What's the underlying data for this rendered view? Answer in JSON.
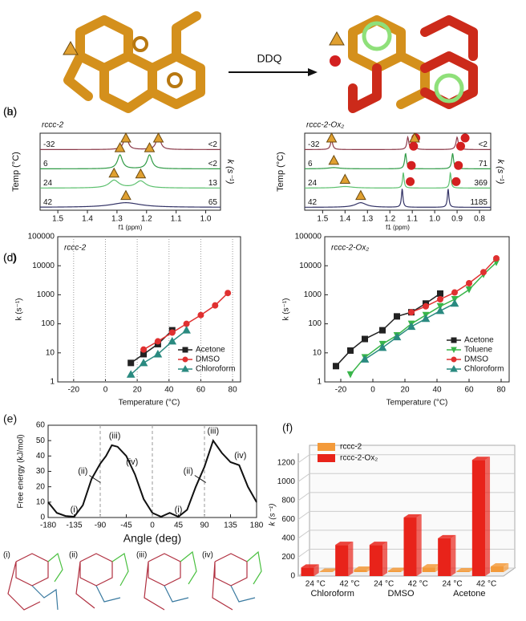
{
  "header": {
    "reagent": "DDQ"
  },
  "structures": {
    "labels": [
      "(i)",
      "(ii)",
      "(iii)",
      "(iv)"
    ]
  },
  "chart_data": [
    {
      "type": "spectrum",
      "panel": "(a)",
      "title": "rccc-2",
      "xlabel": "f1 (ppm)",
      "ylabel": "Temp (°C)",
      "y2label": "k (s⁻¹)",
      "xlim": [
        1.56,
        0.95
      ],
      "xticks": [
        1.5,
        1.4,
        1.3,
        1.2,
        1.1,
        {
          "value": 1.0,
          "label": "1.0"
        }
      ],
      "series": [
        {
          "temp": -32,
          "rate": "<2",
          "color": "#8b3a4a",
          "peaks": [
            1.27,
            1.16
          ],
          "heights": [
            1,
            1
          ],
          "widths": [
            0.008,
            0.008
          ],
          "markers": [
            "triangle",
            "triangle"
          ]
        },
        {
          "temp": 6,
          "rate": "<2",
          "color": "#2f9a45",
          "peaks": [
            1.29,
            1.19
          ],
          "heights": [
            0.9,
            0.9
          ],
          "widths": [
            0.01,
            0.01
          ],
          "markers": [
            "triangle",
            "triangle"
          ]
        },
        {
          "temp": 24,
          "rate": 13,
          "color": "#5cc06e",
          "peaks": [
            1.31,
            1.22
          ],
          "heights": [
            0.5,
            0.45
          ],
          "widths": [
            0.02,
            0.02
          ],
          "markers": [
            "triangle",
            "triangle"
          ]
        },
        {
          "temp": 42,
          "rate": 65,
          "color": "#333366",
          "peaks": [
            1.27
          ],
          "heights": [
            0.3
          ],
          "widths": [
            0.06
          ],
          "markers": [
            "triangle"
          ]
        }
      ]
    },
    {
      "type": "spectrum",
      "panel": "(b)",
      "title": "rccc-2-Ox₂",
      "xlabel": "f1 (ppm)",
      "ylabel": "Temp (°C)",
      "y2label": "k (s⁻¹)",
      "xlim": [
        1.58,
        0.75
      ],
      "xticks": [
        1.5,
        1.4,
        1.3,
        1.2,
        1.1,
        {
          "value": 1.0,
          "label": "1.0"
        },
        0.9,
        0.8
      ],
      "series": [
        {
          "temp": -32,
          "rate": "<2",
          "color": "#8b3a4a",
          "peaks": [
            1.46,
            1.12,
            1.09,
            0.9
          ],
          "heights": [
            0.6,
            0.8,
            0.5,
            0.8
          ],
          "widths": [
            0.006,
            0.005,
            0.005,
            0.006
          ],
          "markers": [
            "triangle",
            "circle",
            "triangle",
            "circle"
          ]
        },
        {
          "temp": 6,
          "rate": 71,
          "color": "#2f9a45",
          "peaks": [
            1.45,
            1.13,
            0.92
          ],
          "heights": [
            0.08,
            1,
            1
          ],
          "widths": [
            0.03,
            0.005,
            0.005
          ],
          "markers": [
            "triangle",
            "circle",
            "circle"
          ]
        },
        {
          "temp": 24,
          "rate": 369,
          "color": "#5cc06e",
          "peaks": [
            1.4,
            1.14,
            0.93
          ],
          "heights": [
            0.1,
            1,
            1
          ],
          "widths": [
            0.04,
            0.004,
            0.004
          ],
          "markers": [
            "triangle",
            "circle",
            "circle"
          ]
        },
        {
          "temp": 42,
          "rate": 1185,
          "color": "#333366",
          "peaks": [
            1.33,
            1.145,
            0.94
          ],
          "heights": [
            0.3,
            1.2,
            1.2
          ],
          "widths": [
            0.03,
            0.004,
            0.004
          ],
          "markers": [
            "triangle",
            "circle",
            "circle"
          ]
        }
      ]
    },
    {
      "type": "line",
      "panel": "(c)",
      "title": "rccc-2",
      "xlabel": "Temperature (°C)",
      "ylabel": "k (s⁻¹)",
      "log_y": true,
      "grid_x": true,
      "legend": "lower right",
      "xlim": [
        -30,
        85
      ],
      "xticks": [
        -20,
        0,
        20,
        40,
        60,
        80
      ],
      "ylim": [
        1,
        100000
      ],
      "yticks": [
        1,
        10,
        100,
        1000,
        10000,
        100000
      ],
      "series": [
        {
          "name": "Acetone",
          "color": "#222222",
          "marker": "square",
          "x": [
            16,
            24,
            33,
            42
          ],
          "values": [
            4.5,
            9,
            20,
            60
          ]
        },
        {
          "name": "DMSO",
          "color": "#e03030",
          "marker": "circle",
          "x": [
            24,
            33,
            42,
            51,
            60,
            69,
            77
          ],
          "values": [
            13,
            25,
            50,
            100,
            200,
            430,
            1150
          ]
        },
        {
          "name": "Chloroform",
          "color": "#2a8a80",
          "marker": "triangle",
          "x": [
            16,
            24,
            33,
            42,
            51
          ],
          "values": [
            1.8,
            4.5,
            9,
            25,
            60
          ]
        }
      ]
    },
    {
      "type": "line",
      "panel": "(d)",
      "title": "rccc-2-Ox₂",
      "xlabel": "Temperature (°C)",
      "ylabel": "k (s⁻¹)",
      "log_y": true,
      "grid_x": false,
      "legend": "lower right",
      "xlim": [
        -30,
        85
      ],
      "xticks": [
        -20,
        0,
        20,
        40,
        60,
        80
      ],
      "ylim": [
        1,
        100000
      ],
      "yticks": [
        1,
        10,
        100,
        1000,
        10000,
        100000
      ],
      "series": [
        {
          "name": "Acetone",
          "color": "#222222",
          "marker": "square",
          "x": [
            -23,
            -14,
            -5,
            6,
            15,
            24,
            33,
            42
          ],
          "values": [
            3.5,
            12,
            30,
            60,
            180,
            250,
            500,
            1100
          ]
        },
        {
          "name": "Toluene",
          "color": "#39b54a",
          "marker": "down",
          "x": [
            -14,
            -5,
            6,
            15,
            24,
            33,
            42,
            51,
            60,
            69,
            77
          ],
          "values": [
            1.8,
            7,
            20,
            40,
            100,
            200,
            400,
            700,
            1500,
            5000,
            13000
          ]
        },
        {
          "name": "DMSO",
          "color": "#e03030",
          "marker": "circle",
          "x": [
            24,
            33,
            42,
            51,
            60,
            69,
            77
          ],
          "values": [
            250,
            400,
            700,
            1200,
            2500,
            6000,
            18000
          ]
        },
        {
          "name": "Chloroform",
          "color": "#2a8a80",
          "marker": "triangle",
          "x": [
            -5,
            6,
            15,
            24,
            33,
            42,
            51
          ],
          "values": [
            6,
            15,
            35,
            80,
            150,
            280,
            500
          ]
        }
      ]
    },
    {
      "type": "line",
      "panel": "(e)",
      "xlabel": "Angle (deg)",
      "ylabel": "Free energy (kJ/mol)",
      "log_y": false,
      "grid_x": false,
      "xlim": [
        -180,
        180
      ],
      "xticks": [
        -180,
        -135,
        -90,
        -45,
        0,
        45,
        90,
        135,
        180
      ],
      "ylim": [
        0,
        60
      ],
      "yticks": [
        0,
        10,
        20,
        30,
        40,
        50,
        60
      ],
      "reference_lines": [
        -90,
        0,
        90
      ],
      "annotations": [
        "(i)",
        "(ii)",
        "(iii)",
        "(iv)",
        "(i)",
        "(ii)",
        "(iii)",
        "(iv)"
      ],
      "series": [
        {
          "color": "#111111",
          "x": [
            -180,
            -165,
            -150,
            -135,
            -120,
            -105,
            -90,
            -80,
            -70,
            -60,
            -45,
            -30,
            -15,
            0,
            15,
            30,
            45,
            60,
            75,
            90,
            105,
            120,
            135,
            150,
            165,
            180
          ],
          "values": [
            10,
            3,
            1,
            0.5,
            8,
            25,
            35,
            40,
            47,
            46,
            40,
            28,
            12,
            3,
            0.5,
            3,
            0.5,
            5,
            20,
            33,
            50,
            42,
            36,
            34,
            20,
            10
          ]
        }
      ]
    },
    {
      "type": "bar",
      "panel": "(f)",
      "ylabel": "k (s⁻¹)",
      "legend": "upper left",
      "categories": [
        "24 °C",
        "42 °C",
        "24 °C",
        "42 °C",
        "24 °C",
        "42 °C"
      ],
      "groups": [
        "Chloroform",
        "DMSO",
        "Acetone"
      ],
      "ylim": [
        0,
        1300
      ],
      "yticks": [
        0,
        200,
        400,
        600,
        800,
        1000,
        1200
      ],
      "series": [
        {
          "name": "rccc-2",
          "color": "#f39a3a",
          "values": [
            4,
            25,
            13,
            50,
            9,
            60
          ]
        },
        {
          "name": "rccc-2-Ox₂",
          "color": "#e8231a",
          "values": [
            90,
            330,
            330,
            620,
            400,
            1230
          ]
        }
      ]
    }
  ]
}
